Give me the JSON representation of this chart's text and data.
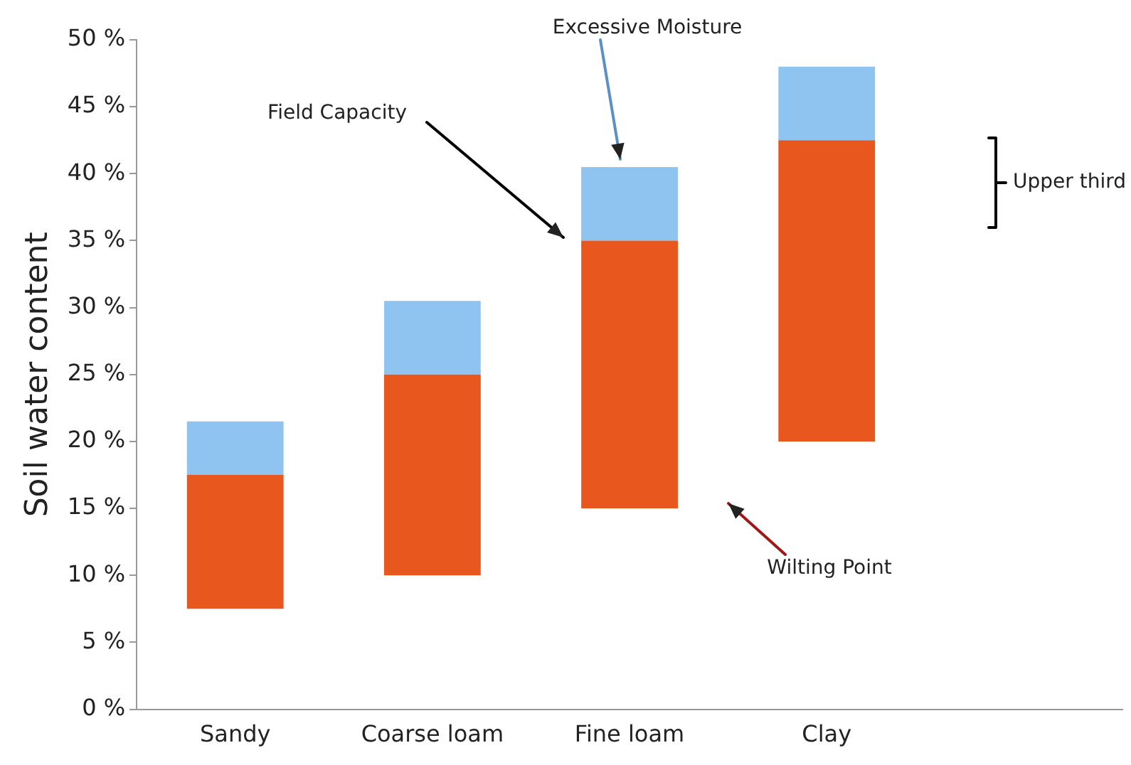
{
  "chart_data": {
    "type": "bar",
    "ylabel": "Soil water content",
    "categories": [
      "Sandy",
      "Coarse loam",
      "Fine loam",
      "Clay",
      null
    ],
    "series": [
      {
        "color": "#e8571e",
        "base": [
          7.5,
          10,
          15,
          20,
          null
        ],
        "values": [
          10,
          15,
          20,
          22.5,
          null
        ]
      },
      {
        "color": "#8fc4f0",
        "base": [
          17.5,
          25,
          35,
          42.5,
          null
        ],
        "values": [
          4,
          5.5,
          5.5,
          5.5,
          null
        ]
      }
    ],
    "ylim": [
      0,
      50
    ],
    "yticks": [
      {
        "value": 0,
        "label": "0 %"
      },
      {
        "value": 5,
        "label": "5 %"
      },
      {
        "value": 10,
        "label": "10 %"
      },
      {
        "value": 15,
        "label": "15 %"
      },
      {
        "value": 20,
        "label": "20 %"
      },
      {
        "value": 25,
        "label": "25 %"
      },
      {
        "value": 30,
        "label": "30 %"
      },
      {
        "value": 35,
        "label": "35 %"
      },
      {
        "value": 40,
        "label": "40 %"
      },
      {
        "value": 45,
        "label": "45 %"
      },
      {
        "value": 50,
        "label": "50 %"
      }
    ],
    "grid": false,
    "legend": false,
    "annotations": [
      "Excessive Moisture",
      "Field Capacity",
      "Wilting Point",
      "Upper third"
    ]
  }
}
